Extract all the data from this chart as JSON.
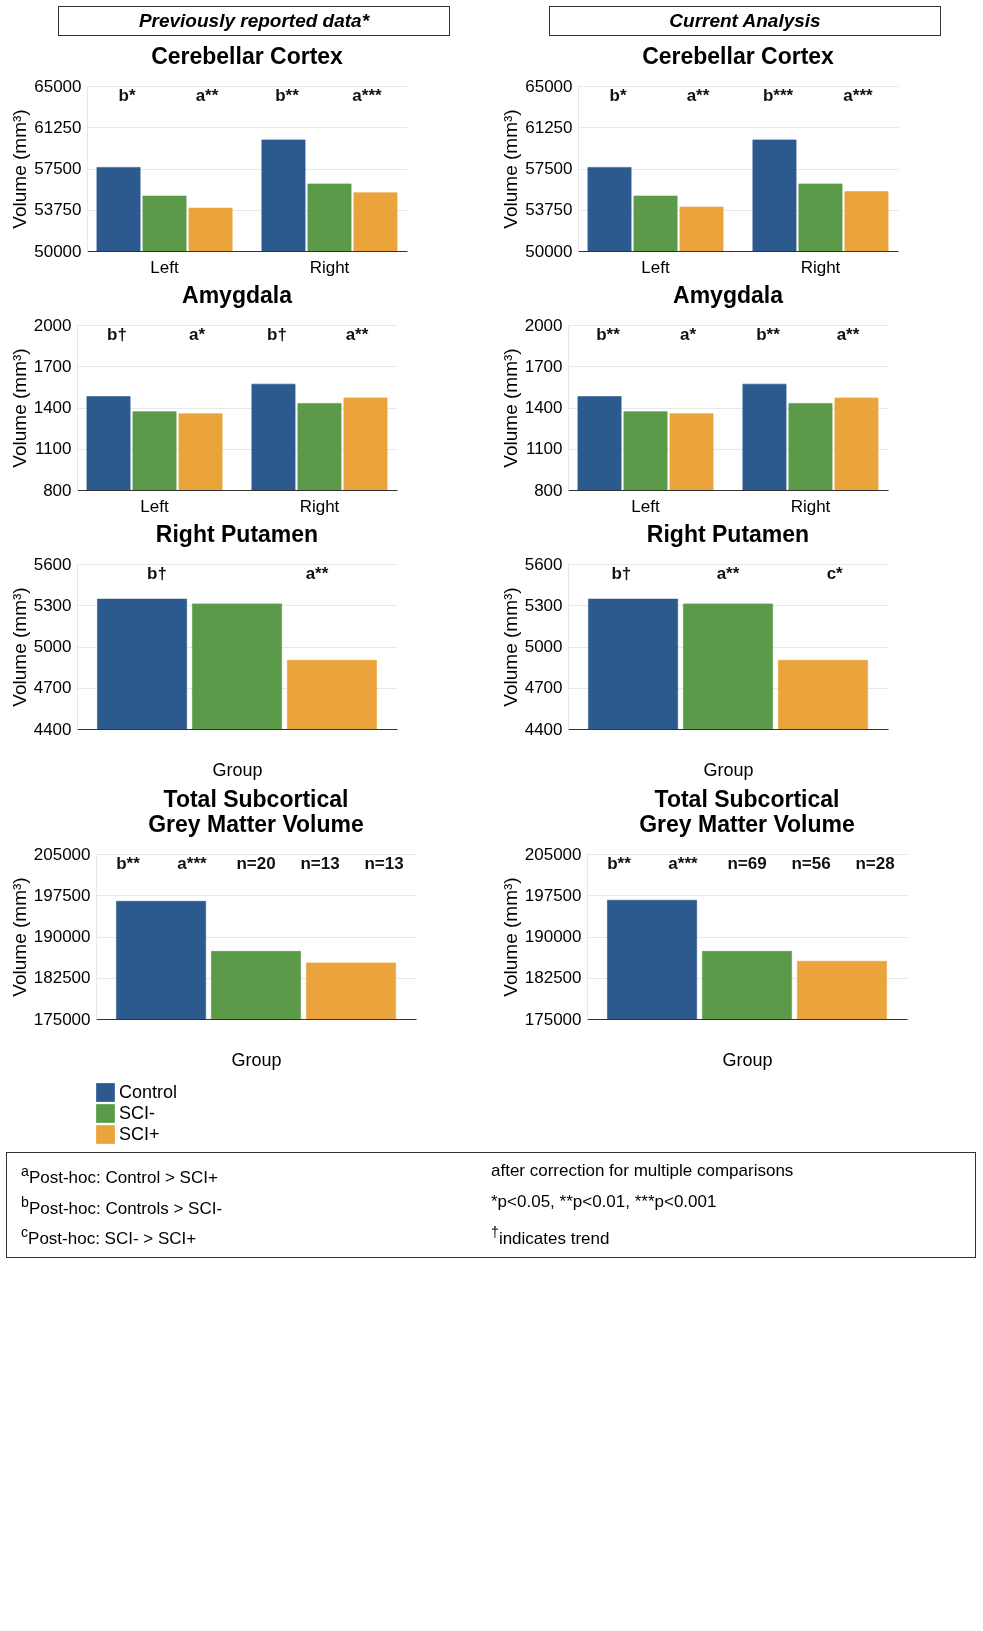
{
  "chart_data": [
    {
      "type": "bar",
      "subtitle": "Previously reported data*",
      "title": "Cerebellar Cortex",
      "ylabel": "Volume (mm³)",
      "categories": [
        "Left",
        "Right"
      ],
      "ylim": [
        50000,
        65000
      ],
      "yticks": [
        50000,
        53750,
        57500,
        61250,
        65000
      ],
      "grid": "y",
      "series": [
        {
          "color": "#2c5a8f",
          "values": [
            57600,
            60100
          ]
        },
        {
          "color": "#5a9a48",
          "values": [
            55000,
            56100
          ]
        },
        {
          "color": "#eba43c",
          "values": [
            53900,
            55300
          ]
        }
      ],
      "annotations": [
        "b*",
        "a**",
        "b**",
        "a***"
      ]
    },
    {
      "type": "bar",
      "subtitle": "Current Analysis",
      "title": "Cerebellar Cortex",
      "ylabel": "Volume (mm³)",
      "categories": [
        "Left",
        "Right"
      ],
      "ylim": [
        50000,
        65000
      ],
      "yticks": [
        50000,
        53750,
        57500,
        61250,
        65000
      ],
      "grid": "y",
      "series": [
        {
          "color": "#2c5a8f",
          "values": [
            57600,
            60100
          ]
        },
        {
          "color": "#5a9a48",
          "values": [
            55000,
            56100
          ]
        },
        {
          "color": "#eba43c",
          "values": [
            54000,
            55400
          ]
        }
      ],
      "annotations": [
        "b*",
        "a**",
        "b***",
        "a***"
      ]
    },
    {
      "type": "bar",
      "title": "Amygdala",
      "ylabel": "Volume (mm³)",
      "categories": [
        "Left",
        "Right"
      ],
      "ylim": [
        800,
        2000
      ],
      "yticks": [
        800,
        1100,
        1400,
        1700,
        2000
      ],
      "grid": "y",
      "series": [
        {
          "color": "#2c5a8f",
          "values": [
            1480,
            1570
          ]
        },
        {
          "color": "#5a9a48",
          "values": [
            1370,
            1430
          ]
        },
        {
          "color": "#eba43c",
          "values": [
            1355,
            1470
          ]
        }
      ],
      "annotations": [
        "b†",
        "a*",
        "b†",
        "a**"
      ]
    },
    {
      "type": "bar",
      "title": "Amygdala",
      "ylabel": "Volume (mm³)",
      "categories": [
        "Left",
        "Right"
      ],
      "ylim": [
        800,
        2000
      ],
      "yticks": [
        800,
        1100,
        1400,
        1700,
        2000
      ],
      "grid": "y",
      "series": [
        {
          "color": "#2c5a8f",
          "values": [
            1480,
            1570
          ]
        },
        {
          "color": "#5a9a48",
          "values": [
            1370,
            1430
          ]
        },
        {
          "color": "#eba43c",
          "values": [
            1355,
            1470
          ]
        }
      ],
      "annotations": [
        "b**",
        "a*",
        "b**",
        "a**"
      ]
    },
    {
      "type": "bar",
      "title": "Right Putamen",
      "ylabel": "Volume (mm³)",
      "xlabel": "Group",
      "categories": [
        null
      ],
      "ylim": [
        4400,
        5600
      ],
      "yticks": [
        4400,
        4700,
        5000,
        5300,
        5600
      ],
      "grid": "y",
      "series": [
        {
          "color": "#2c5a8f",
          "values": [
            5345
          ]
        },
        {
          "color": "#5a9a48",
          "values": [
            5310
          ]
        },
        {
          "color": "#eba43c",
          "values": [
            4900
          ]
        }
      ],
      "annotations": [
        "b†",
        "a**"
      ]
    },
    {
      "type": "bar",
      "title": "Right Putamen",
      "ylabel": "Volume (mm³)",
      "xlabel": "Group",
      "categories": [
        null
      ],
      "ylim": [
        4400,
        5600
      ],
      "yticks": [
        4400,
        4700,
        5000,
        5300,
        5600
      ],
      "grid": "y",
      "series": [
        {
          "color": "#2c5a8f",
          "values": [
            5345
          ]
        },
        {
          "color": "#5a9a48",
          "values": [
            5310
          ]
        },
        {
          "color": "#eba43c",
          "values": [
            4900
          ]
        }
      ],
      "annotations": [
        "b†",
        "a**",
        "c*"
      ]
    },
    {
      "type": "bar",
      "title": "Total Subcortical\nGrey Matter Volume",
      "ylabel": "Volume (mm³)",
      "xlabel": "Group",
      "categories": [
        null
      ],
      "ylim": [
        175000,
        205000
      ],
      "yticks": [
        175000,
        182500,
        190000,
        197500,
        205000
      ],
      "grid": "y",
      "legend": "bottom",
      "series": [
        {
          "name": "Control",
          "color": "#2c5a8f",
          "values": [
            196400
          ]
        },
        {
          "name": "SCI-",
          "color": "#5a9a48",
          "values": [
            187300
          ]
        },
        {
          "name": "SCI+",
          "color": "#eba43c",
          "values": [
            185200
          ]
        }
      ],
      "annotations": [
        "b**",
        "a***",
        "n=20",
        "n=13",
        "n=13"
      ]
    },
    {
      "type": "bar",
      "title": "Total Subcortical\nGrey Matter Volume",
      "ylabel": "Volume (mm³)",
      "xlabel": "Group",
      "categories": [
        null
      ],
      "ylim": [
        175000,
        205000
      ],
      "yticks": [
        175000,
        182500,
        190000,
        197500,
        205000
      ],
      "grid": "y",
      "series": [
        {
          "color": "#2c5a8f",
          "values": [
            196600
          ]
        },
        {
          "color": "#5a9a48",
          "values": [
            187300
          ]
        },
        {
          "color": "#eba43c",
          "values": [
            185500
          ]
        }
      ],
      "annotations": [
        "b**",
        "a***",
        "n=69",
        "n=56",
        "n=28"
      ]
    },
    {
      "type": "other",
      "annotations": [
        "$^{a}$Post-hoc: Control > SCI+",
        "$^{b}$Post-hoc: Controls > SCI-",
        "$^{c}$Post-hoc: SCI- > SCI+",
        "after correction for multiple comparisons",
        "*p<0.05, **p<0.01, ***p<0.001",
        "$^{†}$indicates trend"
      ]
    }
  ]
}
